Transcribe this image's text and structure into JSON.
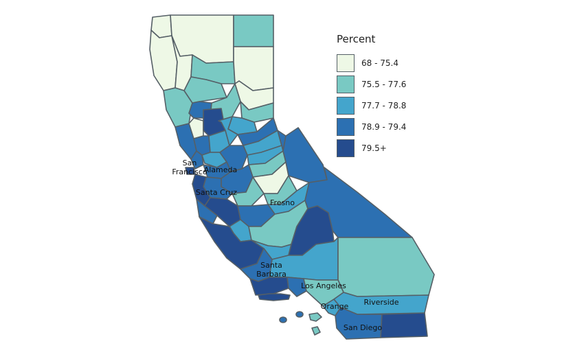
{
  "legend": {
    "title": "Percent",
    "bins": [
      {
        "label": "68 - 75.4",
        "color": "#eef8e6"
      },
      {
        "label": "75.5 - 77.6",
        "color": "#79c9c3"
      },
      {
        "label": "77.7 - 78.8",
        "color": "#44a5cc"
      },
      {
        "label": "78.9 - 79.4",
        "color": "#2c70b2"
      },
      {
        "label": "79.5+",
        "color": "#254c8e"
      }
    ]
  },
  "county_labels": [
    {
      "id": "san-francisco",
      "lines": [
        "San",
        "Francisco"
      ]
    },
    {
      "id": "alameda",
      "lines": [
        "Alameda"
      ]
    },
    {
      "id": "santa-cruz",
      "lines": [
        "Santa Cruz"
      ]
    },
    {
      "id": "fresno",
      "lines": [
        "Fresno"
      ]
    },
    {
      "id": "santa-barbara",
      "lines": [
        "Santa",
        "Barbara"
      ]
    },
    {
      "id": "los-angeles",
      "lines": [
        "Los Angeles"
      ]
    },
    {
      "id": "orange",
      "lines": [
        "Orange"
      ]
    },
    {
      "id": "riverside",
      "lines": [
        "Riverside"
      ]
    },
    {
      "id": "san-diego",
      "lines": [
        "San Diego"
      ]
    }
  ],
  "counties": [
    {
      "name": "del-norte",
      "bin": 0
    },
    {
      "name": "siskiyou",
      "bin": 0
    },
    {
      "name": "modoc",
      "bin": 1
    },
    {
      "name": "humboldt",
      "bin": 0
    },
    {
      "name": "trinity",
      "bin": 0
    },
    {
      "name": "shasta",
      "bin": 1
    },
    {
      "name": "lassen",
      "bin": 0
    },
    {
      "name": "mendocino",
      "bin": 1
    },
    {
      "name": "tehama",
      "bin": 1
    },
    {
      "name": "plumas",
      "bin": 0
    },
    {
      "name": "glenn",
      "bin": 3
    },
    {
      "name": "butte",
      "bin": 1
    },
    {
      "name": "lake",
      "bin": 0
    },
    {
      "name": "colusa",
      "bin": 4
    },
    {
      "name": "sierra",
      "bin": 1
    },
    {
      "name": "nevada",
      "bin": 2
    },
    {
      "name": "sonoma",
      "bin": 3
    },
    {
      "name": "napa",
      "bin": 3
    },
    {
      "name": "yolo",
      "bin": 2
    },
    {
      "name": "sutter",
      "bin": 2
    },
    {
      "name": "placer",
      "bin": 3
    },
    {
      "name": "el-dorado",
      "bin": 2
    },
    {
      "name": "alpine",
      "bin": 3
    },
    {
      "name": "marin",
      "bin": 3
    },
    {
      "name": "solano",
      "bin": 2
    },
    {
      "name": "sacramento",
      "bin": 3
    },
    {
      "name": "amador",
      "bin": 2
    },
    {
      "name": "calaveras",
      "bin": 1
    },
    {
      "name": "tuolumne",
      "bin": 0
    },
    {
      "name": "mono",
      "bin": 3
    },
    {
      "name": "san-francisco",
      "bin": 4
    },
    {
      "name": "contra-costa",
      "bin": 3
    },
    {
      "name": "san-joaquin",
      "bin": 3
    },
    {
      "name": "stanislaus",
      "bin": 1
    },
    {
      "name": "mariposa",
      "bin": 1
    },
    {
      "name": "madera",
      "bin": 2
    },
    {
      "name": "alameda",
      "bin": 3
    },
    {
      "name": "san-mateo",
      "bin": 4
    },
    {
      "name": "santa-clara",
      "bin": 4
    },
    {
      "name": "merced",
      "bin": 3
    },
    {
      "name": "santa-cruz",
      "bin": 3
    },
    {
      "name": "san-benito",
      "bin": 2
    },
    {
      "name": "fresno",
      "bin": 1
    },
    {
      "name": "inyo",
      "bin": 3
    },
    {
      "name": "monterey",
      "bin": 4
    },
    {
      "name": "kings",
      "bin": 2
    },
    {
      "name": "tulare",
      "bin": 4
    },
    {
      "name": "san-luis-obispo",
      "bin": 3
    },
    {
      "name": "kern",
      "bin": 2
    },
    {
      "name": "san-bernardino",
      "bin": 1
    },
    {
      "name": "santa-barbara",
      "bin": 4
    },
    {
      "name": "ventura",
      "bin": 3
    },
    {
      "name": "los-angeles",
      "bin": 1
    },
    {
      "name": "orange",
      "bin": 2
    },
    {
      "name": "riverside",
      "bin": 2
    },
    {
      "name": "san-diego",
      "bin": 3
    },
    {
      "name": "imperial",
      "bin": 4
    },
    {
      "name": "channel-islands-north",
      "bin": 4
    },
    {
      "name": "channel-islands-south",
      "bin": 1
    }
  ]
}
